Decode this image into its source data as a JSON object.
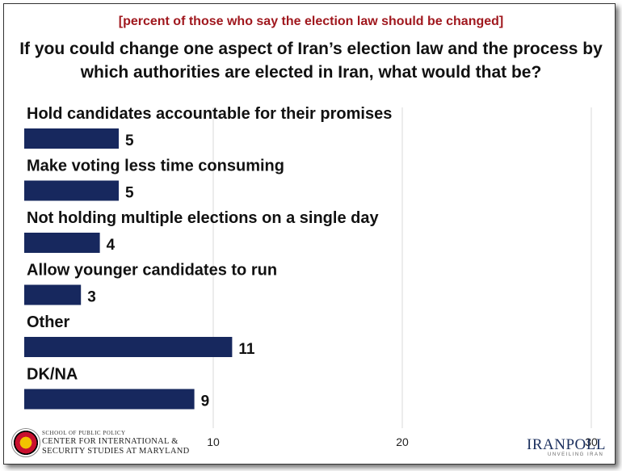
{
  "header": {
    "subtitle": "[percent of those who say the election law should be changed]",
    "title": "If you could change one aspect of Iran’s election law and the process by which authorities are elected in Iran, what would that be?"
  },
  "colors": {
    "bar": "#17285e",
    "subtitle": "#a0181e"
  },
  "chart_data": {
    "type": "bar",
    "orientation": "horizontal",
    "categories": [
      "Hold candidates accountable for their promises",
      "Make voting less time consuming",
      "Not holding multiple elections on a single day",
      "Allow younger candidates to run",
      "Other",
      "DK/NA"
    ],
    "values": [
      5,
      5,
      4,
      3,
      11,
      9
    ],
    "xlim": [
      0,
      30
    ],
    "xticks": [
      10,
      20,
      30
    ],
    "grid": true
  },
  "footer": {
    "org_small": "SCHOOL OF PUBLIC POLICY",
    "org_line1": "CENTER FOR INTERNATIONAL &",
    "org_line2": "SECURITY STUDIES AT MARYLAND",
    "brand": "IRANPOLL",
    "brand_sub": "UNVEILING IRAN"
  }
}
